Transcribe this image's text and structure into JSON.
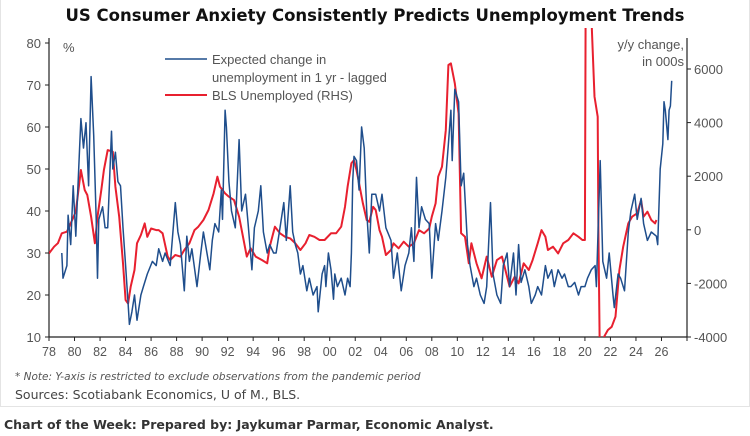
{
  "title": "US Consumer Anxiety Consistently Predicts Unemployment Trends",
  "note": "* Note: Y-axis is restricted to exclude observations from the pandemic period",
  "sources": "Sources: Scotiabank Economics, U of M., BLS.",
  "footer": "Chart of the Week: Prepared by: Jaykumar Parmar, Economic Analyst.",
  "chart_data": {
    "type": "line",
    "title": "US Consumer Anxiety Consistently Predicts Unemployment Trends",
    "left_axis": {
      "unit_label": "%",
      "ylim": [
        10,
        80
      ],
      "ticks": [
        10,
        20,
        30,
        40,
        50,
        60,
        70,
        80
      ]
    },
    "right_axis": {
      "unit_label": [
        "y/y change,",
        "in 000s"
      ],
      "ylim": [
        -4000,
        6000
      ],
      "ticks": [
        "-4000",
        "-2000",
        "0",
        "2000",
        "4000",
        "6000"
      ],
      "tick_values": [
        -4000,
        -2000,
        0,
        2000,
        4000,
        6000
      ]
    },
    "x_axis": {
      "xlim": [
        1978,
        2028
      ],
      "tick_labels": [
        "78",
        "80",
        "82",
        "84",
        "86",
        "88",
        "90",
        "92",
        "94",
        "96",
        "98",
        "00",
        "02",
        "04",
        "06",
        "08",
        "10",
        "12",
        "14",
        "16",
        "18",
        "20",
        "22",
        "24",
        "26"
      ]
    },
    "grid": false,
    "legend": {
      "position": "top-left",
      "entries": [
        "Expected change in",
        "unemployment in 1 yr - lagged",
        "BLS Unemployed (RHS)"
      ]
    },
    "series": [
      {
        "name": "Expected change in unemployment in 1 yr - lagged",
        "axis": "left",
        "color": "#1f4e8c",
        "x": [
          1979.0,
          1979.1,
          1979.4,
          1979.5,
          1979.7,
          1979.9,
          1980.1,
          1980.4,
          1980.5,
          1980.7,
          1980.9,
          1981.1,
          1981.3,
          1981.5,
          1981.7,
          1981.8,
          1981.9,
          1982.2,
          1982.4,
          1982.6,
          1982.9,
          1983.0,
          1983.2,
          1983.4,
          1983.6,
          1983.8,
          1984.0,
          1984.2,
          1984.3,
          1984.5,
          1984.7,
          1984.9,
          1985.2,
          1985.4,
          1985.7,
          1986.1,
          1986.4,
          1986.6,
          1986.9,
          1987.1,
          1987.5,
          1987.9,
          1988.1,
          1988.3,
          1988.6,
          1988.8,
          1989.0,
          1989.2,
          1989.6,
          1989.9,
          1990.1,
          1990.6,
          1990.8,
          1991.0,
          1991.3,
          1991.5,
          1991.6,
          1991.8,
          1991.9,
          1992.1,
          1992.3,
          1992.6,
          1992.9,
          1993.1,
          1993.4,
          1993.6,
          1993.9,
          1994.1,
          1994.4,
          1994.6,
          1994.8,
          1995.1,
          1995.3,
          1995.6,
          1995.8,
          1996.1,
          1996.4,
          1996.6,
          1996.9,
          1997.1,
          1997.3,
          1997.5,
          1997.7,
          1997.9,
          1998.2,
          1998.4,
          1998.7,
          1999.0,
          1999.1,
          1999.4,
          1999.6,
          1999.7,
          1999.9,
          2000.1,
          2000.3,
          2000.4,
          2000.6,
          2000.9,
          2001.2,
          2001.4,
          2001.6,
          2001.7,
          2001.8,
          2001.9,
          2002.1,
          2002.3,
          2002.5,
          2002.7,
          2002.9,
          2003.1,
          2003.3,
          2003.6,
          2003.9,
          2004.1,
          2004.4,
          2004.8,
          2005.0,
          2005.3,
          2005.6,
          2005.9,
          2006.2,
          2006.4,
          2006.6,
          2006.8,
          2007.0,
          2007.2,
          2007.5,
          2007.8,
          2008.0,
          2008.3,
          2008.5,
          2008.8,
          2009.1,
          2009.3,
          2009.5,
          2009.6,
          2009.8,
          2010.1,
          2010.3,
          2010.5,
          2010.8,
          2011.0,
          2011.3,
          2011.5,
          2011.8,
          2012.1,
          2012.3,
          2012.6,
          2012.8,
          2013.1,
          2013.4,
          2013.6,
          2013.9,
          2014.1,
          2014.4,
          2014.6,
          2014.8,
          2015.0,
          2015.3,
          2015.6,
          2015.8,
          2016.1,
          2016.3,
          2016.6,
          2016.9,
          2017.1,
          2017.4,
          2017.6,
          2017.9,
          2018.2,
          2018.4,
          2018.7,
          2018.9,
          2019.2,
          2019.5,
          2019.7,
          2020.0,
          2020.2,
          2020.5,
          2020.8,
          2020.9,
          2021.2,
          2021.4,
          2021.7,
          2021.9,
          2022.2,
          2022.3,
          2022.6,
          2022.8,
          2023.1,
          2023.4,
          2023.6,
          2023.9,
          2024.1,
          2024.4,
          2024.6,
          2024.9,
          2025.2,
          2025.6,
          2025.7,
          2025.9,
          2026.1,
          2026.2,
          2026.3,
          2026.5,
          2026.6,
          2026.7,
          2026.8
        ],
        "values": [
          30,
          24,
          27,
          39,
          32,
          46,
          34,
          55,
          62,
          55,
          61,
          46,
          72,
          58,
          38,
          24,
          38,
          41,
          36,
          36,
          59,
          50,
          54,
          47,
          46,
          36,
          27,
          18,
          13,
          16,
          20,
          14,
          20,
          22,
          25,
          28,
          27,
          31,
          28,
          30,
          27,
          42,
          35,
          32,
          21,
          34,
          28,
          31,
          22,
          30,
          35,
          26,
          33,
          37,
          35,
          45,
          38,
          64,
          60,
          47,
          40,
          36,
          57,
          40,
          44,
          37,
          26,
          36,
          40,
          46,
          35,
          30,
          32,
          30,
          30,
          36,
          42,
          33,
          46,
          35,
          32,
          30,
          25,
          27,
          21,
          24,
          20,
          22,
          16,
          25,
          27,
          22,
          30,
          26,
          19,
          25,
          22,
          24,
          20,
          24,
          22,
          30,
          47,
          53,
          52,
          45,
          60,
          55,
          40,
          30,
          44,
          44,
          40,
          44,
          36,
          33,
          24,
          30,
          21,
          27,
          30,
          36,
          28,
          48,
          36,
          41,
          38,
          37,
          24,
          37,
          33,
          40,
          48,
          56,
          64,
          52,
          69,
          66,
          46,
          49,
          32,
          27,
          22,
          24,
          20,
          18,
          22,
          42,
          25,
          20,
          18,
          27,
          30,
          22,
          30,
          20,
          32,
          23,
          26,
          22,
          18,
          20,
          22,
          20,
          27,
          24,
          26,
          22,
          26,
          24,
          25,
          22,
          22,
          23,
          20,
          22,
          22,
          24,
          26,
          27,
          22,
          52,
          28,
          24,
          30,
          20,
          17,
          25,
          24,
          21,
          35,
          40,
          44,
          38,
          43,
          37,
          33,
          35,
          34,
          32,
          50,
          56,
          66,
          64,
          57,
          64,
          65,
          71
        ]
      },
      {
        "name": "BLS Unemployed (RHS)",
        "axis": "right",
        "color": "#e8202f",
        "x": [
          1978.0,
          1978.4,
          1978.7,
          1979.0,
          1979.4,
          1979.7,
          1980.1,
          1980.5,
          1980.8,
          1981.0,
          1981.3,
          1981.6,
          1981.8,
          1982.1,
          1982.3,
          1982.6,
          1983.0,
          1983.2,
          1983.5,
          1983.8,
          1984.0,
          1984.2,
          1984.4,
          1984.7,
          1984.9,
          1985.2,
          1985.5,
          1985.7,
          1986.0,
          1986.4,
          1986.6,
          1986.9,
          1987.3,
          1987.5,
          1987.9,
          1988.3,
          1988.6,
          1989.0,
          1989.4,
          1989.7,
          1990.1,
          1990.5,
          1990.9,
          1991.2,
          1991.4,
          1991.8,
          1992.1,
          1992.5,
          1992.9,
          1993.2,
          1993.5,
          1993.8,
          1994.2,
          1994.7,
          1995.1,
          1995.3,
          1995.7,
          1996.1,
          1996.5,
          1996.9,
          1997.3,
          1997.7,
          1998.1,
          1998.4,
          1998.8,
          1999.2,
          1999.6,
          2000.1,
          2000.5,
          2000.9,
          2001.2,
          2001.4,
          2001.7,
          2001.9,
          2002.1,
          2002.3,
          2002.6,
          2002.9,
          2003.1,
          2003.4,
          2003.6,
          2003.9,
          2004.1,
          2004.4,
          2004.8,
          2005.0,
          2005.4,
          2005.8,
          2006.2,
          2006.6,
          2007.0,
          2007.4,
          2007.8,
          2008.0,
          2008.3,
          2008.5,
          2008.8,
          2009.1,
          2009.3,
          2009.5,
          2009.8,
          2010.1,
          2010.3,
          2010.6,
          2010.9,
          2011.1,
          2011.5,
          2011.9,
          2012.3,
          2012.7,
          2013.1,
          2013.5,
          2013.9,
          2014.1,
          2014.5,
          2014.8,
          2015.2,
          2015.6,
          2015.9,
          2016.3,
          2016.6,
          2016.9,
          2017.1,
          2017.5,
          2017.9,
          2018.3,
          2018.7,
          2019.1,
          2019.5,
          2019.8,
          2020.0,
          2020.1,
          2020.55,
          2020.75,
          2021.0,
          2021.06,
          2021.2,
          2021.5,
          2021.8,
          2022.1,
          2022.4,
          2022.7,
          2023.0,
          2023.4,
          2023.7,
          2024.1,
          2024.4,
          2024.6,
          2024.9,
          2025.2,
          2025.5,
          2025.6
        ],
        "values": [
          -880,
          -630,
          -500,
          -130,
          -70,
          240,
          675,
          2230,
          1485,
          1300,
          490,
          -505,
          490,
          1485,
          2230,
          2975,
          2915,
          1610,
          490,
          -1250,
          -2620,
          -2750,
          -2120,
          -1500,
          -505,
          -195,
          240,
          -260,
          50,
          -10,
          -10,
          -130,
          -1000,
          -1130,
          -940,
          -1000,
          -755,
          -505,
          -10,
          115,
          365,
          740,
          1360,
          1980,
          1610,
          1360,
          1235,
          1110,
          490,
          -260,
          -1000,
          -690,
          -1000,
          -1130,
          -1250,
          -630,
          115,
          -130,
          -260,
          -320,
          -505,
          -755,
          -505,
          -195,
          -260,
          -380,
          -380,
          -130,
          -130,
          115,
          860,
          1610,
          2480,
          2600,
          2230,
          1730,
          985,
          365,
          300,
          860,
          740,
          -10,
          -260,
          -940,
          -755,
          -505,
          -690,
          -445,
          -630,
          -505,
          -10,
          -130,
          50,
          490,
          985,
          1980,
          2355,
          3720,
          6150,
          6210,
          5465,
          4345,
          -130,
          -260,
          -1250,
          -505,
          -1250,
          -1810,
          -1000,
          -1750,
          -1130,
          -1000,
          -1750,
          -2120,
          -1750,
          -2000,
          -1250,
          -1500,
          -1130,
          -505,
          -10,
          -260,
          -755,
          -630,
          -880,
          -505,
          -380,
          -130,
          -260,
          -380,
          -380,
          15000,
          7450,
          4970,
          4220,
          -10,
          -6000,
          -3990,
          -3740,
          -3620,
          -3240,
          -1500,
          -630,
          240,
          490,
          615,
          1110,
          490,
          675,
          365,
          240,
          365
        ]
      }
    ]
  }
}
